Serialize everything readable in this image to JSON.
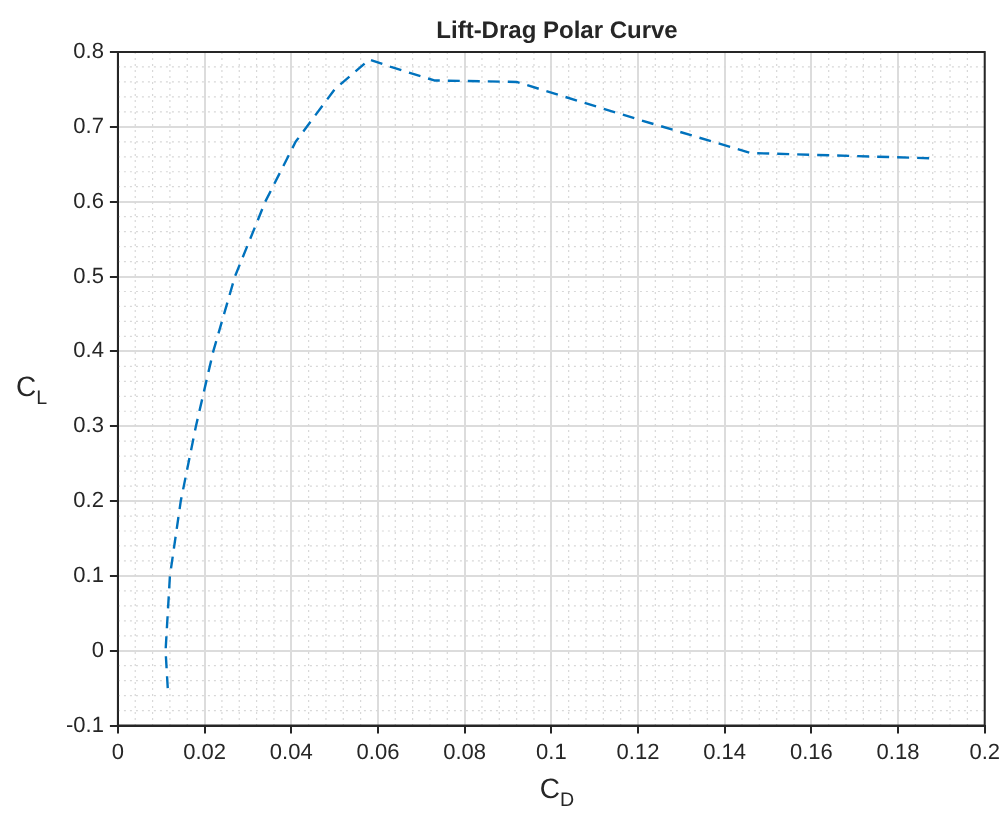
{
  "chart_data": {
    "type": "line",
    "title": "Lift-Drag Polar Curve",
    "xlabel": "C$_{D}$",
    "ylabel": "C$_{L}$",
    "series": [
      {
        "color": "#0072bd",
        "x": [
          0.0115,
          0.011,
          0.012,
          0.0145,
          0.018,
          0.022,
          0.027,
          0.034,
          0.041,
          0.05,
          0.058,
          0.063,
          0.073,
          0.092,
          0.12,
          0.146,
          0.188
        ],
        "values": [
          -0.05,
          0.0,
          0.1,
          0.2,
          0.3,
          0.4,
          0.5,
          0.6,
          0.68,
          0.75,
          0.79,
          0.78,
          0.762,
          0.76,
          0.71,
          0.665,
          0.658
        ]
      }
    ],
    "xlim": [
      0,
      0.2
    ],
    "xticks": [
      0,
      0.02,
      0.04,
      0.06,
      0.08,
      0.1,
      0.12,
      0.14,
      0.16,
      0.18,
      0.2
    ],
    "ylim": [
      -0.1,
      0.8
    ],
    "yticks": [
      -0.1,
      0,
      0.1,
      0.2,
      0.3,
      0.4,
      0.5,
      0.6,
      0.7,
      0.8
    ],
    "grid": true,
    "legend": false,
    "marker": "none",
    "line_style": "dashed"
  }
}
